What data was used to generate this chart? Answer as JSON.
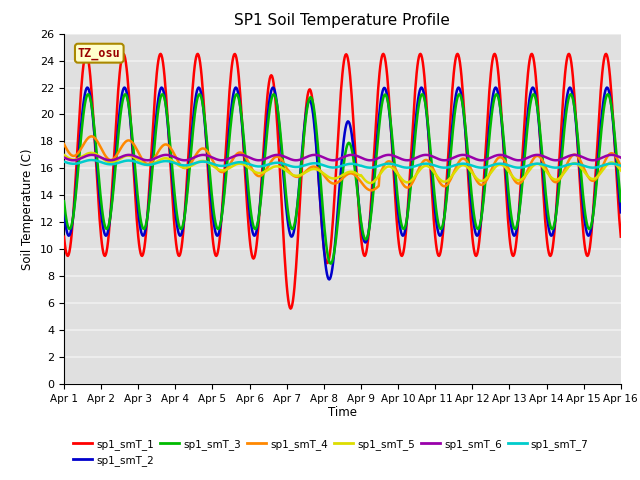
{
  "title": "SP1 Soil Temperature Profile",
  "xlabel": "Time",
  "ylabel": "Soil Temperature (C)",
  "ylim": [
    0,
    26
  ],
  "xlim": [
    0,
    15
  ],
  "xtick_labels": [
    "Apr 1",
    "Apr 2",
    "Apr 3",
    "Apr 4",
    "Apr 5",
    "Apr 6",
    "Apr 7",
    "Apr 8",
    "Apr 9",
    "Apr 10",
    "Apr 11",
    "Apr 12",
    "Apr 13",
    "Apr 14",
    "Apr 15",
    "Apr 16"
  ],
  "ytick_values": [
    0,
    2,
    4,
    6,
    8,
    10,
    12,
    14,
    16,
    18,
    20,
    22,
    24,
    26
  ],
  "bg_color": "#e0e0e0",
  "grid_color": "#f0f0f0",
  "tz_label": "TZ_osu",
  "tz_bg": "#ffffcc",
  "tz_border": "#aa8800",
  "tz_text_color": "#990000",
  "series_colors": [
    "#ff0000",
    "#0000cc",
    "#00bb00",
    "#ff8800",
    "#dddd00",
    "#9900aa",
    "#00cccc"
  ],
  "series_labels": [
    "sp1_smT_1",
    "sp1_smT_2",
    "sp1_smT_3",
    "sp1_smT_4",
    "sp1_smT_5",
    "sp1_smT_6",
    "sp1_smT_7"
  ],
  "n_points": 721,
  "time_start": 0,
  "time_end": 15
}
